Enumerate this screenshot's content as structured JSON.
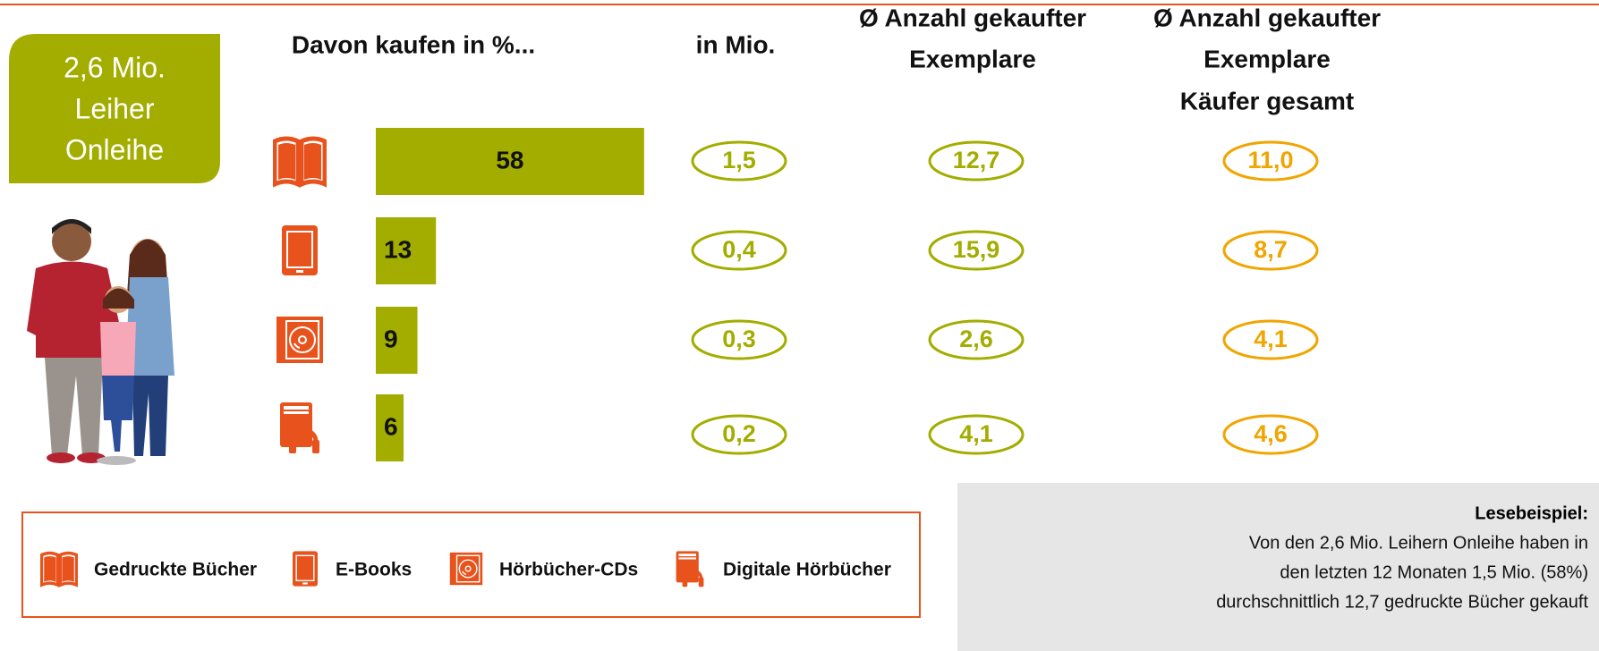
{
  "badge": [
    "2,6 Mio.",
    "Leiher",
    "Onleihe"
  ],
  "chart_data": {
    "type": "bar",
    "title": "Davon kaufen in %...",
    "categories": [
      "Gedruckte Bücher",
      "E-Books",
      "Hörbücher-CDs",
      "Digitale Hörbücher"
    ],
    "values": [
      58,
      13,
      9,
      6
    ],
    "color": "#a3ad00",
    "xlim": [
      0,
      100
    ]
  },
  "columns": [
    {
      "header": [
        "in Mio."
      ],
      "values": [
        1.5,
        0.4,
        0.3,
        0.2
      ],
      "value_labels": [
        "1,5",
        "0,4",
        "0,3",
        "0,2"
      ],
      "color": "#a3ad00"
    },
    {
      "header": [
        "Ø Anzahl gekaufter",
        "Exemplare"
      ],
      "values": [
        12.7,
        15.9,
        2.6,
        4.1
      ],
      "value_labels": [
        "12,7",
        "15,9",
        "2,6",
        "4,1"
      ],
      "color": "#a3ad00"
    },
    {
      "header": [
        "Ø Anzahl gekaufter",
        "Exemplare",
        "Käufer gesamt"
      ],
      "values": [
        11.0,
        8.7,
        4.1,
        4.6
      ],
      "value_labels": [
        "11,0",
        "8,7",
        "4,1",
        "4,6"
      ],
      "color": "#f0a500"
    }
  ],
  "note": {
    "title": "Lesebeispiel:",
    "lines": [
      "Von den 2,6 Mio. Leihern Onleihe haben in",
      "den letzten 12 Monaten 1,5 Mio. (58%)",
      "durchschnittlich 12,7 gedruckte Bücher gekauft"
    ]
  }
}
